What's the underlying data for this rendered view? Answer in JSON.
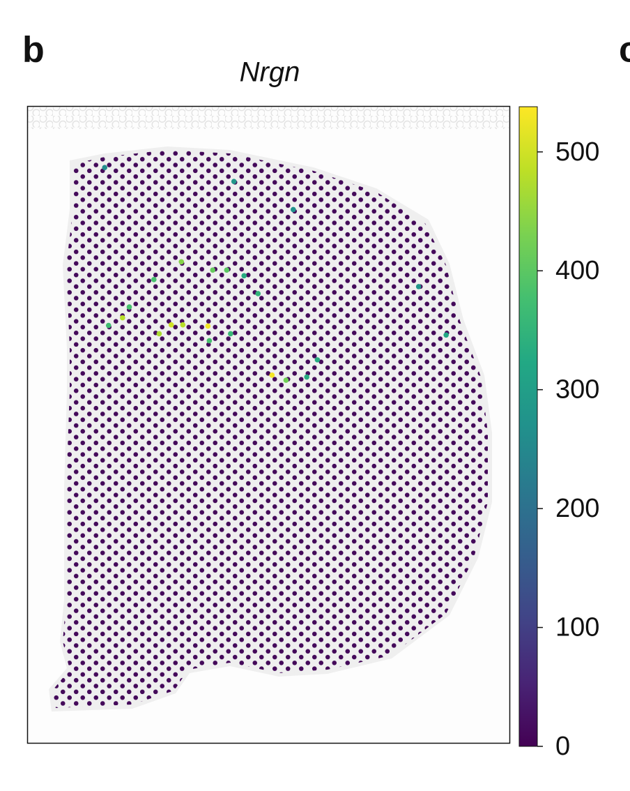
{
  "chart_data": {
    "type": "spatial",
    "panel_label": "b",
    "next_panel_label": "c",
    "title": "Nrgn",
    "colormap": "viridis",
    "clim": [
      0,
      538
    ],
    "cticks": [
      0,
      100,
      200,
      300,
      400,
      500
    ],
    "spot_color": "#440a5a",
    "spots": {
      "x": [
        19.7,
        29.8,
        32.2,
        37.4,
        27.3,
        50.7,
        53.6,
        31.9,
        26.2,
        38.4,
        41.3,
        16.8,
        21.1,
        42.1,
        37.7,
        47.8,
        57.9,
        60.1,
        86.8,
        81.1,
        16.0,
        42.8,
        55.1,
        44.9
      ],
      "y": [
        33.2,
        34.3,
        34.3,
        34.5,
        35.7,
        42.2,
        43.0,
        24.4,
        27.2,
        25.7,
        25.7,
        34.4,
        31.5,
        35.7,
        36.8,
        29.4,
        42.5,
        39.8,
        35.9,
        28.3,
        9.6,
        11.8,
        16.2,
        26.6
      ],
      "values": [
        480,
        500,
        480,
        530,
        470,
        530,
        420,
        440,
        380,
        410,
        400,
        370,
        380,
        360,
        380,
        350,
        330,
        330,
        320,
        280,
        260,
        280,
        270,
        330
      ]
    }
  }
}
